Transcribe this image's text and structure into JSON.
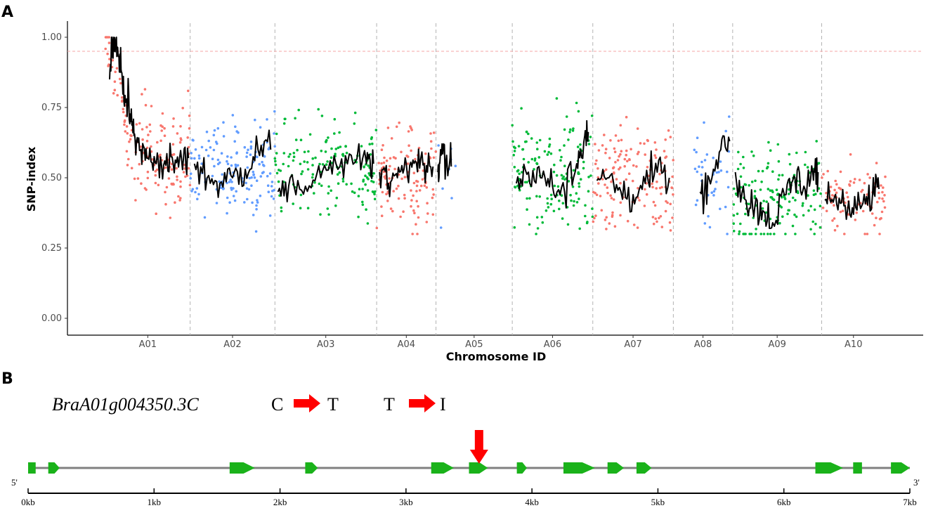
{
  "panel_a": {
    "letter": "A",
    "chart_data": {
      "type": "scatter",
      "xlabel": "Chromosome ID",
      "ylabel": "SNP-index",
      "ylim": [
        0,
        1
      ],
      "yticks": [
        "0.00",
        "0.25",
        "0.50",
        "0.75",
        "1.00"
      ],
      "threshold": 0.95,
      "grid": false,
      "legend": "none",
      "colors": {
        "A01": "#f8766d",
        "A02": "#619cff",
        "A03": "#00ba38",
        "A04": "#f8766d",
        "A05": "#619cff",
        "A06": "#00ba38",
        "A07": "#f8766d",
        "A08": "#619cff",
        "A09": "#00ba38",
        "A10": "#f8766d",
        "line": "#000000",
        "threshold": "#f4a6a6",
        "separator": "#b3b3b3"
      },
      "chromosomes": [
        {
          "name": "A01",
          "start": 0.0,
          "end": 1.0,
          "mean": 0.58,
          "spread": 0.1,
          "n": 150,
          "line": [
            [
              0.05,
              0.85
            ],
            [
              0.08,
              1.0
            ],
            [
              0.12,
              0.99
            ],
            [
              0.16,
              0.93
            ],
            [
              0.2,
              0.85
            ],
            [
              0.25,
              0.78
            ],
            [
              0.3,
              0.7
            ],
            [
              0.35,
              0.64
            ],
            [
              0.42,
              0.6
            ],
            [
              0.5,
              0.57
            ],
            [
              0.6,
              0.55
            ],
            [
              0.7,
              0.56
            ],
            [
              0.8,
              0.55
            ],
            [
              0.9,
              0.56
            ],
            [
              0.98,
              0.57
            ]
          ]
        },
        {
          "name": "A02",
          "start": 1.0,
          "end": 2.0,
          "mean": 0.54,
          "spread": 0.08,
          "n": 150,
          "line": [
            [
              0.05,
              0.55
            ],
            [
              0.2,
              0.5
            ],
            [
              0.35,
              0.48
            ],
            [
              0.5,
              0.5
            ],
            [
              0.65,
              0.53
            ],
            [
              0.8,
              0.6
            ],
            [
              0.95,
              0.6
            ]
          ]
        },
        {
          "name": "A03",
          "start": 2.0,
          "end": 3.2,
          "mean": 0.52,
          "spread": 0.09,
          "n": 150,
          "line": [
            [
              0.03,
              0.45
            ],
            [
              0.15,
              0.5
            ],
            [
              0.3,
              0.47
            ],
            [
              0.45,
              0.5
            ],
            [
              0.6,
              0.55
            ],
            [
              0.75,
              0.58
            ],
            [
              0.9,
              0.55
            ],
            [
              0.97,
              0.55
            ]
          ]
        },
        {
          "name": "A04",
          "start": 3.2,
          "end": 3.9,
          "mean": 0.5,
          "spread": 0.09,
          "n": 120,
          "line": [
            [
              0.05,
              0.52
            ],
            [
              0.2,
              0.48
            ],
            [
              0.35,
              0.5
            ],
            [
              0.5,
              0.55
            ],
            [
              0.65,
              0.56
            ],
            [
              0.8,
              0.55
            ],
            [
              0.95,
              0.54
            ]
          ]
        },
        {
          "name": "A05",
          "start": 3.9,
          "end": 4.8,
          "mean": 0.52,
          "spread": 0.12,
          "n": 8,
          "line": [
            [
              0.02,
              0.52
            ],
            [
              0.06,
              0.6
            ],
            [
              0.14,
              0.58
            ],
            [
              0.2,
              0.54
            ]
          ]
        },
        {
          "name": "A06",
          "start": 4.8,
          "end": 5.75,
          "mean": 0.52,
          "spread": 0.1,
          "n": 150,
          "line": [
            [
              0.05,
              0.48
            ],
            [
              0.2,
              0.52
            ],
            [
              0.35,
              0.5
            ],
            [
              0.5,
              0.47
            ],
            [
              0.65,
              0.45
            ],
            [
              0.8,
              0.55
            ],
            [
              0.9,
              0.65
            ],
            [
              0.95,
              0.66
            ]
          ]
        },
        {
          "name": "A07",
          "start": 5.75,
          "end": 6.7,
          "mean": 0.5,
          "spread": 0.1,
          "n": 150,
          "line": [
            [
              0.05,
              0.49
            ],
            [
              0.2,
              0.5
            ],
            [
              0.35,
              0.45
            ],
            [
              0.5,
              0.44
            ],
            [
              0.65,
              0.48
            ],
            [
              0.8,
              0.52
            ],
            [
              0.95,
              0.5
            ]
          ]
        },
        {
          "name": "A08",
          "start": 6.7,
          "end": 7.4,
          "mean": 0.48,
          "spread": 0.09,
          "n": 40,
          "line": [
            [
              0.45,
              0.45
            ],
            [
              0.6,
              0.5
            ],
            [
              0.8,
              0.6
            ],
            [
              0.95,
              0.63
            ]
          ]
        },
        {
          "name": "A09",
          "start": 7.4,
          "end": 8.45,
          "mean": 0.44,
          "spread": 0.09,
          "n": 150,
          "line": [
            [
              0.03,
              0.52
            ],
            [
              0.15,
              0.42
            ],
            [
              0.25,
              0.4
            ],
            [
              0.35,
              0.38
            ],
            [
              0.45,
              0.34
            ],
            [
              0.6,
              0.44
            ],
            [
              0.7,
              0.5
            ],
            [
              0.8,
              0.47
            ],
            [
              0.9,
              0.52
            ],
            [
              0.96,
              0.52
            ]
          ]
        },
        {
          "name": "A10",
          "start": 8.45,
          "end": 9.2,
          "mean": 0.42,
          "spread": 0.06,
          "n": 90,
          "line": [
            [
              0.05,
              0.42
            ],
            [
              0.2,
              0.43
            ],
            [
              0.35,
              0.4
            ],
            [
              0.5,
              0.37
            ],
            [
              0.65,
              0.41
            ],
            [
              0.8,
              0.44
            ],
            [
              0.9,
              0.46
            ]
          ]
        }
      ],
      "separators": [
        1.0,
        2.0,
        3.2,
        3.9,
        4.8,
        5.75,
        6.7,
        7.4,
        8.45
      ]
    }
  },
  "panel_b": {
    "letter": "B",
    "gene_name": "BraA01g004350.3C",
    "mutation_1": {
      "from": "C",
      "to": "T"
    },
    "mutation_2": {
      "from": "T",
      "to": "I"
    },
    "five_prime": "5'",
    "three_prime": "3'",
    "scale": {
      "min": 0,
      "max": 7,
      "labels": [
        "0kb",
        "1kb",
        "2kb",
        "3kb",
        "4kb",
        "5kb",
        "6kb",
        "7kb"
      ]
    },
    "exons": [
      {
        "start": 0.0,
        "end": 0.06,
        "type": "block"
      },
      {
        "start": 0.16,
        "end": 0.25,
        "type": "arrow"
      },
      {
        "start": 1.6,
        "end": 1.8,
        "type": "arrow"
      },
      {
        "start": 2.2,
        "end": 2.3,
        "type": "arrow"
      },
      {
        "start": 3.2,
        "end": 3.38,
        "type": "arrow"
      },
      {
        "start": 3.5,
        "end": 3.65,
        "type": "arrow"
      },
      {
        "start": 3.88,
        "end": 3.96,
        "type": "arrow"
      },
      {
        "start": 4.25,
        "end": 4.5,
        "type": "arrow"
      },
      {
        "start": 4.6,
        "end": 4.73,
        "type": "arrow"
      },
      {
        "start": 4.83,
        "end": 4.95,
        "type": "arrow"
      },
      {
        "start": 6.25,
        "end": 6.47,
        "type": "arrow"
      },
      {
        "start": 6.55,
        "end": 6.62,
        "type": "block"
      },
      {
        "start": 6.85,
        "end": 7.0,
        "type": "arrow"
      }
    ],
    "mutation_position_kb": 3.58,
    "colors": {
      "exon": "#1ab21a",
      "intron": "#808080",
      "arrow": "#ff0000"
    }
  }
}
